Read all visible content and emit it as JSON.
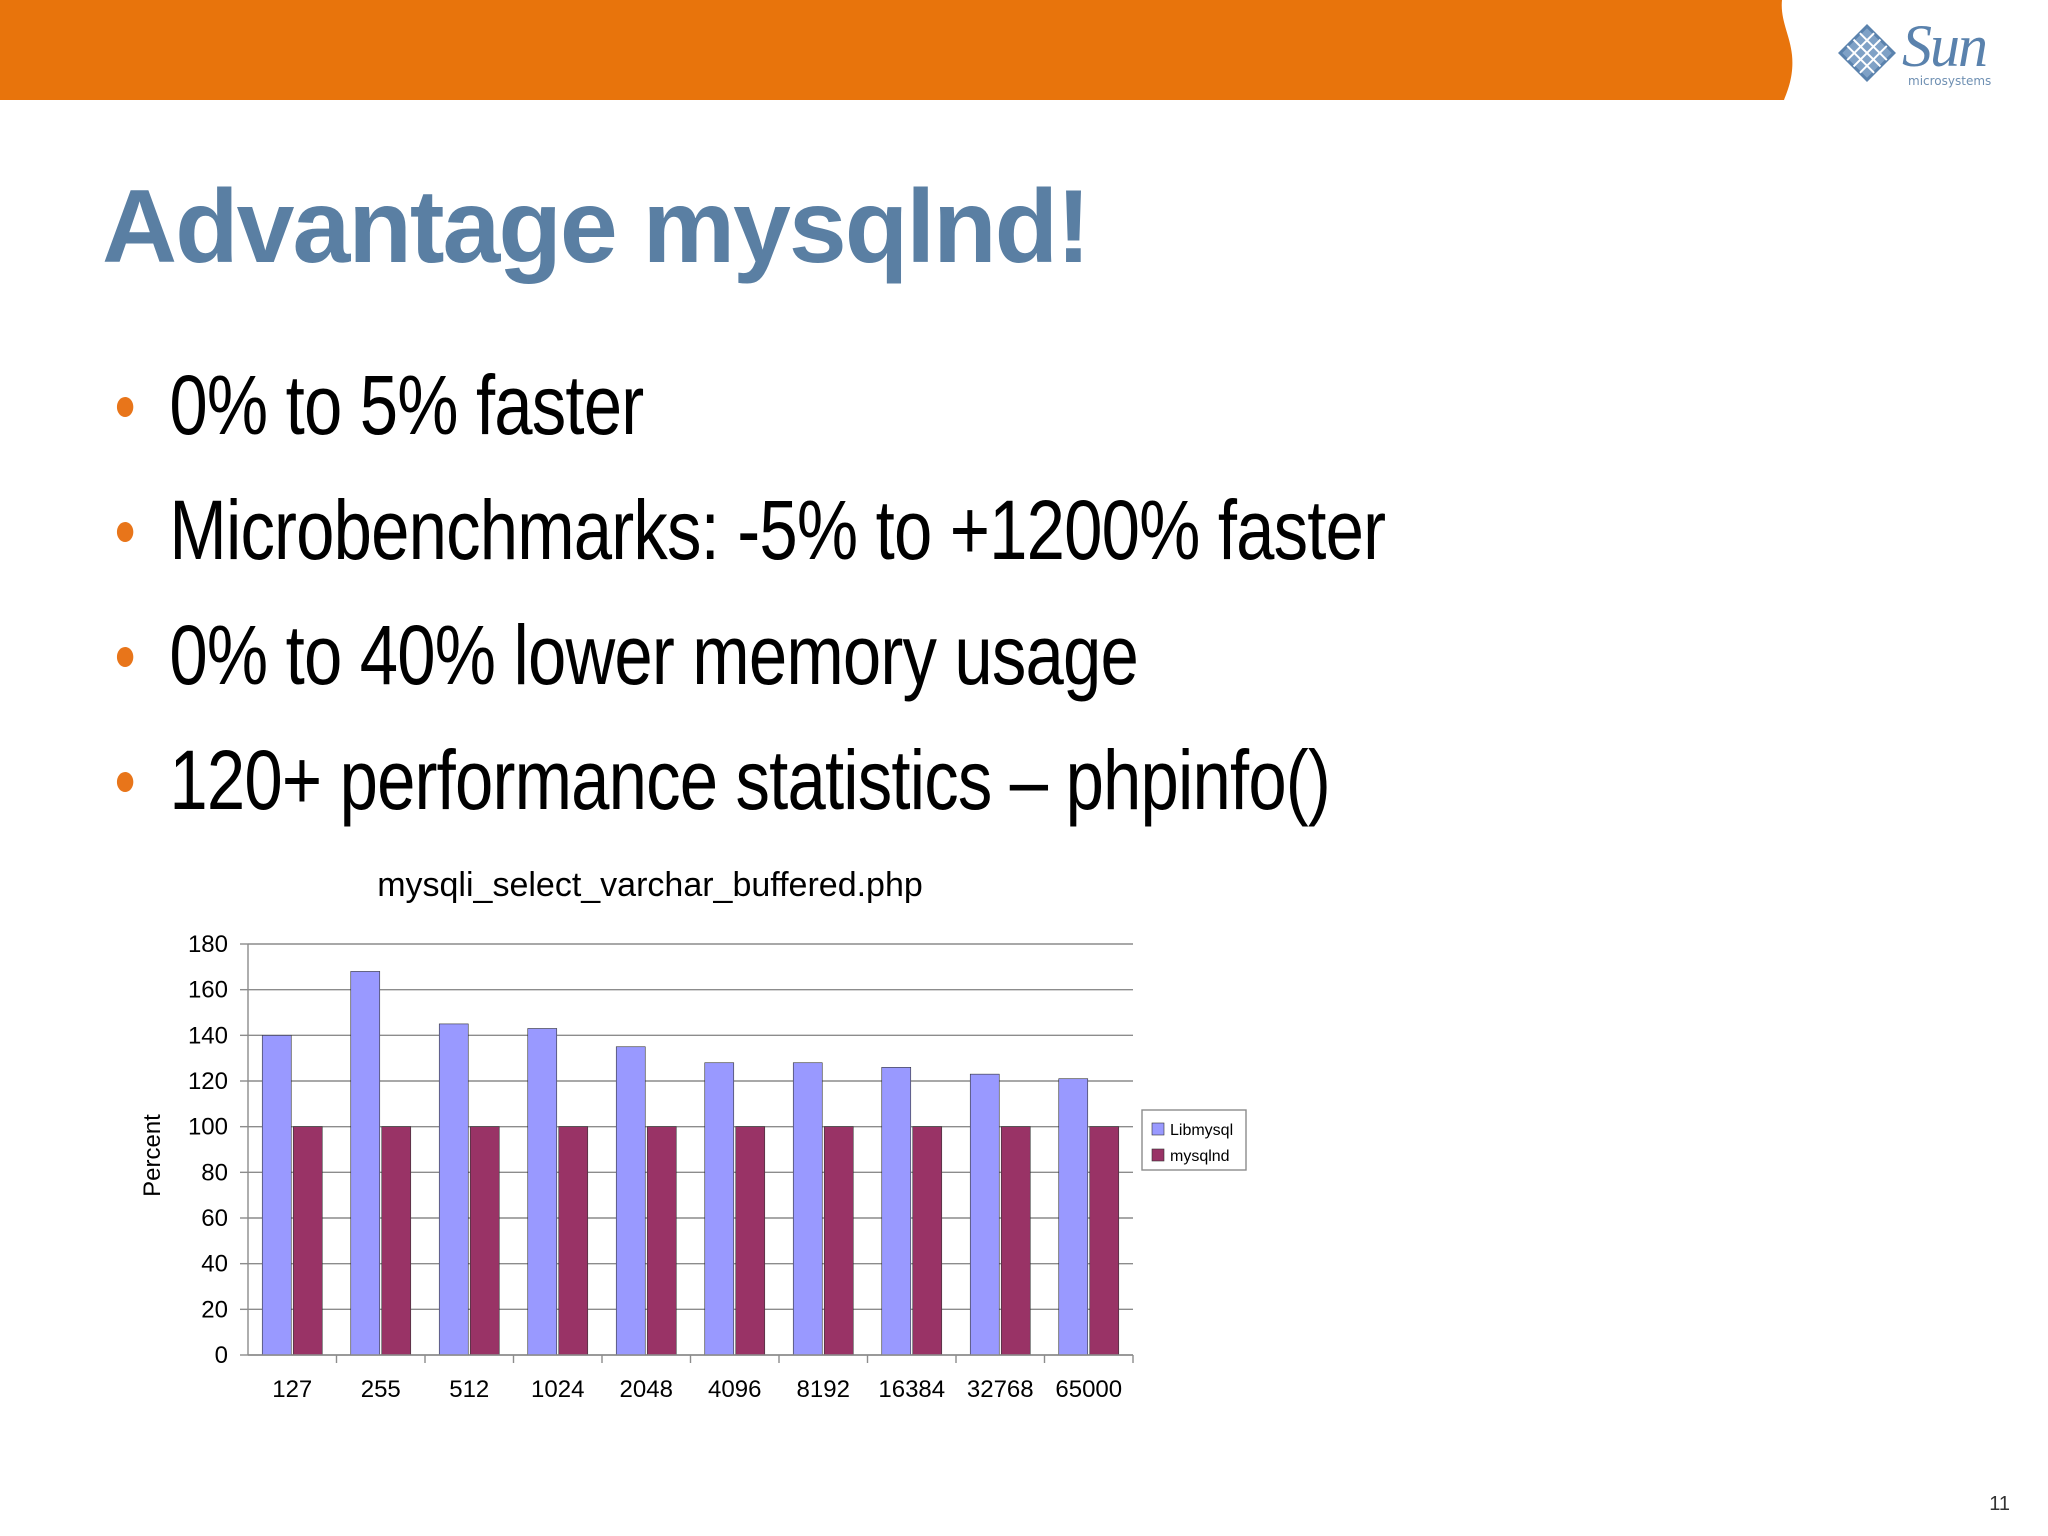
{
  "slide": {
    "title": "Advantage mysqlnd!",
    "bullets": [
      "0% to 5% faster",
      "Microbenchmarks: -5% to +1200% faster",
      "0% to 40% lower memory usage",
      "120+ performance statistics – phpinfo()"
    ],
    "page_number": "11",
    "logo": {
      "word": "Sun",
      "sub": "microsystems",
      "icon": "sun-logo-icon"
    },
    "colors": {
      "header_bar": "#e8740c",
      "title": "#5a7fa3",
      "bullet": "#e8751a"
    }
  },
  "chart_data": {
    "type": "bar",
    "title": "mysqli_select_varchar_buffered.php",
    "xlabel": "",
    "ylabel": "Percent",
    "ylim": [
      0,
      180
    ],
    "yticks": [
      0,
      20,
      40,
      60,
      80,
      100,
      120,
      140,
      160,
      180
    ],
    "categories": [
      "127",
      "255",
      "512",
      "1024",
      "2048",
      "4096",
      "8192",
      "16384",
      "32768",
      "65000"
    ],
    "series": [
      {
        "name": "Libmysql",
        "color": "#9999ff",
        "values": [
          140,
          168,
          145,
          143,
          135,
          128,
          128,
          126,
          123,
          121
        ]
      },
      {
        "name": "mysqlnd",
        "color": "#993366",
        "values": [
          100,
          100,
          100,
          100,
          100,
          100,
          100,
          100,
          100,
          100
        ]
      }
    ],
    "grid": true,
    "legend": "right"
  }
}
